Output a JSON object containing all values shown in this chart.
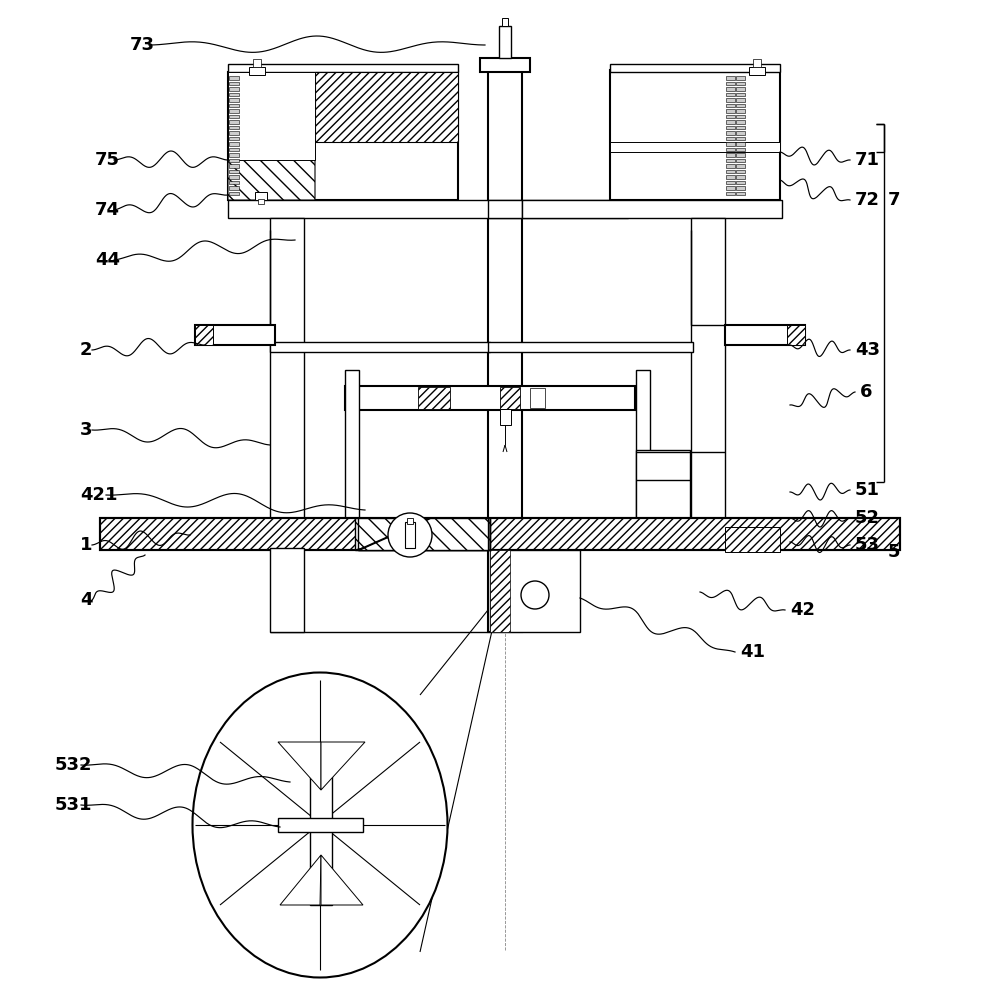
{
  "bg_color": "#ffffff",
  "line_color": "#000000",
  "lw": 1.0,
  "lw2": 1.5,
  "label_fontsize": 13,
  "fig_width": 9.95,
  "fig_height": 10.0,
  "annotations_left": [
    [
      "73",
      130,
      955,
      485,
      955
    ],
    [
      "75",
      95,
      840,
      228,
      840
    ],
    [
      "74",
      95,
      790,
      228,
      805
    ],
    [
      "44",
      95,
      740,
      295,
      760
    ],
    [
      "2",
      80,
      650,
      205,
      655
    ],
    [
      "3",
      80,
      570,
      270,
      555
    ],
    [
      "421",
      80,
      505,
      365,
      490
    ],
    [
      "1",
      80,
      455,
      190,
      465
    ],
    [
      "4",
      80,
      400,
      145,
      445
    ],
    [
      "532",
      55,
      235,
      290,
      218
    ],
    [
      "531",
      55,
      195,
      280,
      173
    ]
  ],
  "annotations_right": [
    [
      "71",
      855,
      840,
      780,
      848
    ],
    [
      "72",
      855,
      800,
      780,
      820
    ],
    [
      "43",
      855,
      650,
      790,
      655
    ],
    [
      "6",
      860,
      608,
      790,
      595
    ],
    [
      "51",
      855,
      510,
      790,
      508
    ],
    [
      "52",
      855,
      482,
      790,
      482
    ],
    [
      "53",
      855,
      455,
      790,
      458
    ],
    [
      "42",
      790,
      390,
      700,
      408
    ],
    [
      "41",
      740,
      348,
      580,
      402
    ]
  ],
  "bracket_7": [
    876,
    848,
    876,
    800,
    888,
    824
  ],
  "bracket_5": [
    876,
    518,
    876,
    448,
    888,
    483
  ]
}
